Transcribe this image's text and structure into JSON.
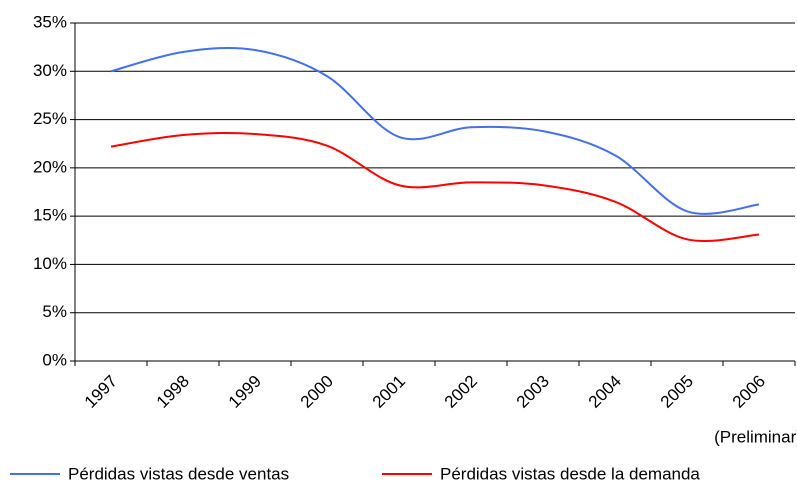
{
  "chart_data": {
    "type": "line",
    "categories": [
      "1997",
      "1998",
      "1999",
      "2000",
      "2001",
      "2002",
      "2003",
      "2004",
      "2005",
      "2006"
    ],
    "x_annotation": "(Preliminar)",
    "series": [
      {
        "name": "Pérdidas vistas desde ventas",
        "color": "#4470e8",
        "values": [
          30.0,
          32.0,
          32.2,
          29.5,
          23.2,
          24.2,
          23.8,
          21.3,
          15.5,
          16.2
        ]
      },
      {
        "name": "Pérdidas vistas desde la demanda",
        "color": "#ff0000",
        "values": [
          22.2,
          23.4,
          23.5,
          22.3,
          18.2,
          18.5,
          18.2,
          16.5,
          12.6,
          13.1
        ]
      }
    ],
    "ylim": [
      0,
      35
    ],
    "yticks": [
      {
        "value": 0,
        "label": "0%"
      },
      {
        "value": 5,
        "label": "5%"
      },
      {
        "value": 10,
        "label": "10%"
      },
      {
        "value": 15,
        "label": "15%"
      },
      {
        "value": 20,
        "label": "20%"
      },
      {
        "value": 25,
        "label": "25%"
      },
      {
        "value": 30,
        "label": "30%"
      },
      {
        "value": 35,
        "label": "35%"
      }
    ],
    "grid": true,
    "legend": "bottom"
  }
}
